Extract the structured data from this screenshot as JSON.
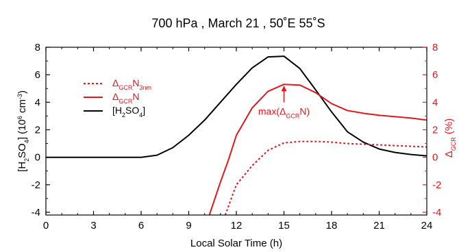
{
  "chart_data": {
    "type": "line",
    "title": "700 hPa , March 21 , 50˚E 55˚S",
    "xlabel": "Local Solar Time (h)",
    "xlim": [
      0,
      24
    ],
    "xticks": [
      "0",
      "3",
      "6",
      "9",
      "12",
      "15",
      "18",
      "21",
      "24"
    ],
    "ylabel_left": {
      "prefix": "[H",
      "sub1": "2",
      "mid": "SO",
      "sub2": "4",
      "suffix": "] (10",
      "sup": "6",
      "unit": " cm",
      "sup2": "-3",
      "end": ")"
    },
    "ylim_left": [
      -4.2,
      8
    ],
    "yticks_left": [
      "-4",
      "-2",
      "0",
      "2",
      "4",
      "6",
      "8"
    ],
    "ylabel_right": {
      "prefix": "Δ",
      "sub": "GCR",
      "suffix": " (%)"
    },
    "ylim_right": [
      -4.2,
      8
    ],
    "yticks_right": [
      "-4",
      "-2",
      "0",
      "2",
      "4",
      "6",
      "8"
    ],
    "grid": false,
    "legend_position": "upper-left",
    "legend": [
      {
        "key": "dn3",
        "parts": [
          "Δ",
          "GCR",
          "N",
          "3nm"
        ],
        "color": "#e8131b",
        "dash": "3,3"
      },
      {
        "key": "dn",
        "parts": [
          "Δ",
          "GCR",
          "N"
        ],
        "color": "#e8131b",
        "dash": ""
      },
      {
        "key": "h2so4",
        "parts": [
          "[H",
          "2",
          "SO",
          "4",
          "]"
        ],
        "color": "#000000",
        "dash": ""
      }
    ],
    "annotation": {
      "parts": [
        "max(Δ",
        "GCR",
        "N)"
      ],
      "x": 15,
      "y_arrow_tip": 5.2,
      "y_arrow_tail": 4.0,
      "y_text": 3.1
    },
    "series": [
      {
        "key": "h2so4",
        "axis": "left",
        "color": "#000000",
        "x": [
          0,
          1,
          2,
          3,
          4,
          5,
          6,
          7,
          8,
          9,
          10,
          11,
          12,
          13,
          14,
          15,
          16,
          17,
          18,
          19,
          20,
          21,
          22,
          23,
          24
        ],
        "y": [
          0,
          0,
          0,
          0,
          0,
          0,
          0,
          0.15,
          0.7,
          1.6,
          2.7,
          4.0,
          5.3,
          6.5,
          7.3,
          7.35,
          6.45,
          4.9,
          3.3,
          1.85,
          1.1,
          0.6,
          0.35,
          0.2,
          0.1
        ]
      },
      {
        "key": "dn",
        "axis": "right",
        "color": "#e8131b",
        "x": [
          10.3,
          11,
          11.5,
          12,
          13,
          14,
          15,
          16,
          17,
          18,
          19,
          20,
          21,
          22,
          23,
          24
        ],
        "y": [
          -4.2,
          -1.8,
          -0.2,
          1.6,
          3.6,
          4.8,
          5.3,
          5.25,
          4.7,
          3.9,
          3.4,
          3.2,
          3.05,
          2.95,
          2.85,
          2.7
        ]
      },
      {
        "key": "dn3",
        "axis": "right",
        "color": "#e8131b",
        "x": [
          11.3,
          12,
          13,
          14,
          15,
          16,
          17,
          18,
          19,
          20,
          21,
          22,
          23,
          24
        ],
        "y": [
          -4.2,
          -2.0,
          -0.6,
          0.5,
          1.05,
          1.15,
          1.15,
          1.1,
          1.0,
          0.95,
          0.9,
          0.85,
          0.8,
          0.75
        ]
      }
    ]
  }
}
